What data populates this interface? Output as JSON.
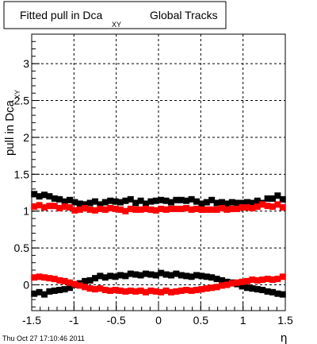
{
  "chart_data": {
    "type": "scatter",
    "title": {
      "main": "Fitted pull in Dca",
      "sub": "XY",
      "tail": "Global Tracks"
    },
    "ylabel": {
      "main": "pull in Dca",
      "sub": "XY"
    },
    "xlabel": "η",
    "timestamp": "Thu Oct 27 17:10:46 2011",
    "xlim": [
      -1.5,
      1.5
    ],
    "ylim": [
      -0.35,
      3.4
    ],
    "xticks": [
      -1.5,
      -1,
      -0.5,
      0,
      0.5,
      1,
      1.5
    ],
    "xtick_labels": [
      "-1.5",
      "-1",
      "-0.5",
      "0",
      "0.5",
      "1",
      "1.5"
    ],
    "yticks": [
      0,
      0.5,
      1,
      1.5,
      2,
      2.5,
      3
    ],
    "ytick_labels": [
      "0",
      "0.5",
      "1",
      "1.5",
      "2",
      "2.5",
      "3"
    ],
    "grid": true,
    "marker": "square",
    "series": [
      {
        "color": "#000000",
        "x": [
          -1.47,
          -1.41,
          -1.35,
          -1.29,
          -1.23,
          -1.17,
          -1.11,
          -1.05,
          -0.99,
          -0.93,
          -0.87,
          -0.81,
          -0.75,
          -0.69,
          -0.63,
          -0.57,
          -0.51,
          -0.45,
          -0.39,
          -0.33,
          -0.27,
          -0.21,
          -0.15,
          -0.09,
          -0.03,
          0.03,
          0.09,
          0.15,
          0.21,
          0.27,
          0.33,
          0.39,
          0.45,
          0.51,
          0.57,
          0.63,
          0.69,
          0.75,
          0.81,
          0.87,
          0.93,
          0.99,
          1.05,
          1.11,
          1.17,
          1.23,
          1.29,
          1.35,
          1.41,
          1.47
        ],
        "y": [
          1.23,
          1.2,
          1.22,
          1.2,
          1.17,
          1.16,
          1.13,
          1.15,
          1.12,
          1.1,
          1.09,
          1.11,
          1.13,
          1.09,
          1.12,
          1.14,
          1.13,
          1.12,
          1.14,
          1.16,
          1.11,
          1.14,
          1.1,
          1.13,
          1.14,
          1.15,
          1.14,
          1.12,
          1.15,
          1.15,
          1.14,
          1.16,
          1.13,
          1.1,
          1.12,
          1.15,
          1.11,
          1.12,
          1.1,
          1.12,
          1.11,
          1.11,
          1.12,
          1.11,
          1.14,
          1.11,
          1.17,
          1.17,
          1.21,
          1.16
        ]
      },
      {
        "color": "#ff0000",
        "x": [
          -1.47,
          -1.41,
          -1.35,
          -1.29,
          -1.23,
          -1.17,
          -1.11,
          -1.05,
          -0.99,
          -0.93,
          -0.87,
          -0.81,
          -0.75,
          -0.69,
          -0.63,
          -0.57,
          -0.51,
          -0.45,
          -0.39,
          -0.33,
          -0.27,
          -0.21,
          -0.15,
          -0.09,
          -0.03,
          0.03,
          0.09,
          0.15,
          0.21,
          0.27,
          0.33,
          0.39,
          0.45,
          0.51,
          0.57,
          0.63,
          0.69,
          0.75,
          0.81,
          0.87,
          0.93,
          0.99,
          1.05,
          1.11,
          1.17,
          1.23,
          1.29,
          1.35,
          1.41,
          1.47
        ],
        "y": [
          1.06,
          1.08,
          1.05,
          1.07,
          1.07,
          1.04,
          1.06,
          1.05,
          1.01,
          1.02,
          1.04,
          1.02,
          1.01,
          1.03,
          1.02,
          1.04,
          1.03,
          1.02,
          1.0,
          1.03,
          1.02,
          1.02,
          1.03,
          1.02,
          1.01,
          1.03,
          1.02,
          1.03,
          1.03,
          1.03,
          1.04,
          1.02,
          1.03,
          1.02,
          1.02,
          1.02,
          1.02,
          1.04,
          1.02,
          1.03,
          1.03,
          1.05,
          1.05,
          1.04,
          1.06,
          1.09,
          1.07,
          1.06,
          1.09,
          1.05
        ]
      },
      {
        "color": "#000000",
        "x": [
          -1.47,
          -1.41,
          -1.35,
          -1.29,
          -1.23,
          -1.17,
          -1.11,
          -1.05,
          -0.99,
          -0.93,
          -0.87,
          -0.81,
          -0.75,
          -0.69,
          -0.63,
          -0.57,
          -0.51,
          -0.45,
          -0.39,
          -0.33,
          -0.27,
          -0.21,
          -0.15,
          -0.09,
          -0.03,
          0.03,
          0.09,
          0.15,
          0.21,
          0.27,
          0.33,
          0.39,
          0.45,
          0.51,
          0.57,
          0.63,
          0.69,
          0.75,
          0.81,
          0.87,
          0.93,
          0.99,
          1.05,
          1.11,
          1.17,
          1.23,
          1.29,
          1.35,
          1.41,
          1.47
        ],
        "y": [
          -0.12,
          -0.1,
          -0.13,
          -0.09,
          -0.08,
          -0.07,
          -0.06,
          -0.04,
          0.0,
          0.02,
          0.05,
          0.06,
          0.09,
          0.12,
          0.1,
          0.12,
          0.11,
          0.13,
          0.12,
          0.15,
          0.14,
          0.13,
          0.15,
          0.14,
          0.13,
          0.16,
          0.14,
          0.13,
          0.15,
          0.13,
          0.12,
          0.11,
          0.13,
          0.12,
          0.11,
          0.1,
          0.08,
          0.06,
          0.04,
          0.03,
          0.01,
          -0.02,
          -0.04,
          -0.05,
          -0.06,
          -0.07,
          -0.09,
          -0.1,
          -0.12,
          -0.13
        ]
      },
      {
        "color": "#ff0000",
        "x": [
          -1.47,
          -1.41,
          -1.35,
          -1.29,
          -1.23,
          -1.17,
          -1.11,
          -1.05,
          -0.99,
          -0.93,
          -0.87,
          -0.81,
          -0.75,
          -0.69,
          -0.63,
          -0.57,
          -0.51,
          -0.45,
          -0.39,
          -0.33,
          -0.27,
          -0.21,
          -0.15,
          -0.09,
          -0.03,
          0.03,
          0.09,
          0.15,
          0.21,
          0.27,
          0.33,
          0.39,
          0.45,
          0.51,
          0.57,
          0.63,
          0.69,
          0.75,
          0.81,
          0.87,
          0.93,
          0.99,
          1.05,
          1.11,
          1.17,
          1.23,
          1.29,
          1.35,
          1.41,
          1.47
        ],
        "y": [
          0.1,
          0.11,
          0.1,
          0.09,
          0.08,
          0.06,
          0.05,
          0.03,
          0.01,
          -0.01,
          -0.03,
          -0.05,
          -0.06,
          -0.05,
          -0.07,
          -0.08,
          -0.07,
          -0.08,
          -0.09,
          -0.08,
          -0.09,
          -0.08,
          -0.1,
          -0.08,
          -0.09,
          -0.1,
          -0.08,
          -0.1,
          -0.09,
          -0.08,
          -0.07,
          -0.08,
          -0.07,
          -0.06,
          -0.05,
          -0.04,
          -0.03,
          -0.01,
          0.0,
          0.02,
          0.03,
          0.04,
          0.05,
          0.07,
          0.06,
          0.07,
          0.08,
          0.07,
          0.08,
          0.11
        ]
      }
    ]
  }
}
